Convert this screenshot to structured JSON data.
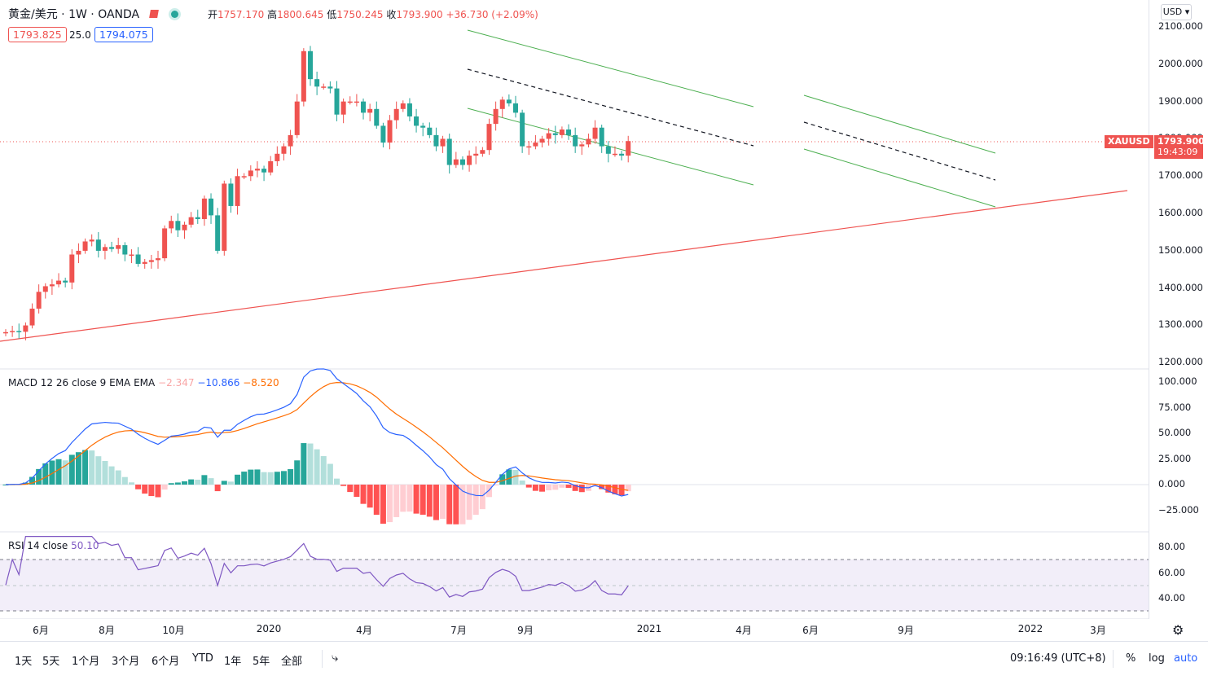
{
  "header": {
    "symbol": "黄金/美元",
    "interval": "1W",
    "broker": "OANDA",
    "open_label": "开",
    "open": "1757.170",
    "high_label": "高",
    "high": "1800.645",
    "low_label": "低",
    "low": "1750.245",
    "close_label": "收",
    "close": "1793.900",
    "change": "+36.730 (+2.09%)",
    "sell_price": "1793.825",
    "spread": "25.0",
    "buy_price": "1794.075"
  },
  "currency": "USD",
  "price_tag": {
    "symbol": "XAUUSD",
    "price": "1793.900",
    "countdown": "19:43:09"
  },
  "price_axis": [
    "2100.000",
    "2000.000",
    "1900.000",
    "1800.000",
    "1700.000",
    "1600.000",
    "1500.000",
    "1400.000",
    "1300.000",
    "1200.000"
  ],
  "macd": {
    "label": "MACD 12 26 close 9 EMA EMA",
    "hist": "−2.347",
    "macd": "−10.866",
    "signal": "−8.520",
    "axis": [
      "100.000",
      "75.000",
      "50.000",
      "25.000",
      "0.000",
      "−25.000"
    ]
  },
  "rsi": {
    "label": "RSI 14 close",
    "value": "50.10",
    "axis": [
      "80.00",
      "60.00",
      "40.00"
    ]
  },
  "time_axis": [
    "6月",
    "8月",
    "10月",
    "2020",
    "4月",
    "7月",
    "9月",
    "2021",
    "4月",
    "6月",
    "9月",
    "2022",
    "3月"
  ],
  "ranges": [
    "1天",
    "5天",
    "1个月",
    "3个月",
    "6个月",
    "YTD",
    "1年",
    "5年",
    "全部"
  ],
  "clock": "09:16:49 (UTC+8)",
  "scale_options": [
    "%",
    "log",
    "auto"
  ],
  "colors": {
    "up": "#ef5350",
    "down": "#26a69a",
    "macd": "#2962ff",
    "signal": "#ff6d00",
    "rsi": "#7e57c2",
    "trend": "#ef5350",
    "channel": "#4caf50"
  },
  "chart_data": {
    "type": "candlestick",
    "weekly_closes": [
      1282,
      1285,
      1283,
      1300,
      1345,
      1390,
      1405,
      1410,
      1420,
      1415,
      1490,
      1500,
      1525,
      1530,
      1500,
      1510,
      1505,
      1515,
      1490,
      1490,
      1465,
      1470,
      1475,
      1480,
      1560,
      1580,
      1555,
      1570,
      1590,
      1585,
      1640,
      1595,
      1500,
      1680,
      1620,
      1700,
      1700,
      1715,
      1720,
      1710,
      1740,
      1760,
      1780,
      1810,
      1900,
      2035,
      1960,
      1940,
      1940,
      1935,
      1865,
      1900,
      1900,
      1900,
      1870,
      1880,
      1835,
      1790,
      1850,
      1880,
      1895,
      1860,
      1835,
      1830,
      1810,
      1780,
      1800,
      1730,
      1745,
      1730,
      1755,
      1760,
      1770,
      1840,
      1880,
      1905,
      1895,
      1870,
      1780,
      1780,
      1790,
      1800,
      1815,
      1810,
      1825,
      1810,
      1780,
      1785,
      1800,
      1830,
      1780,
      1760,
      1760,
      1755,
      1794
    ]
  }
}
